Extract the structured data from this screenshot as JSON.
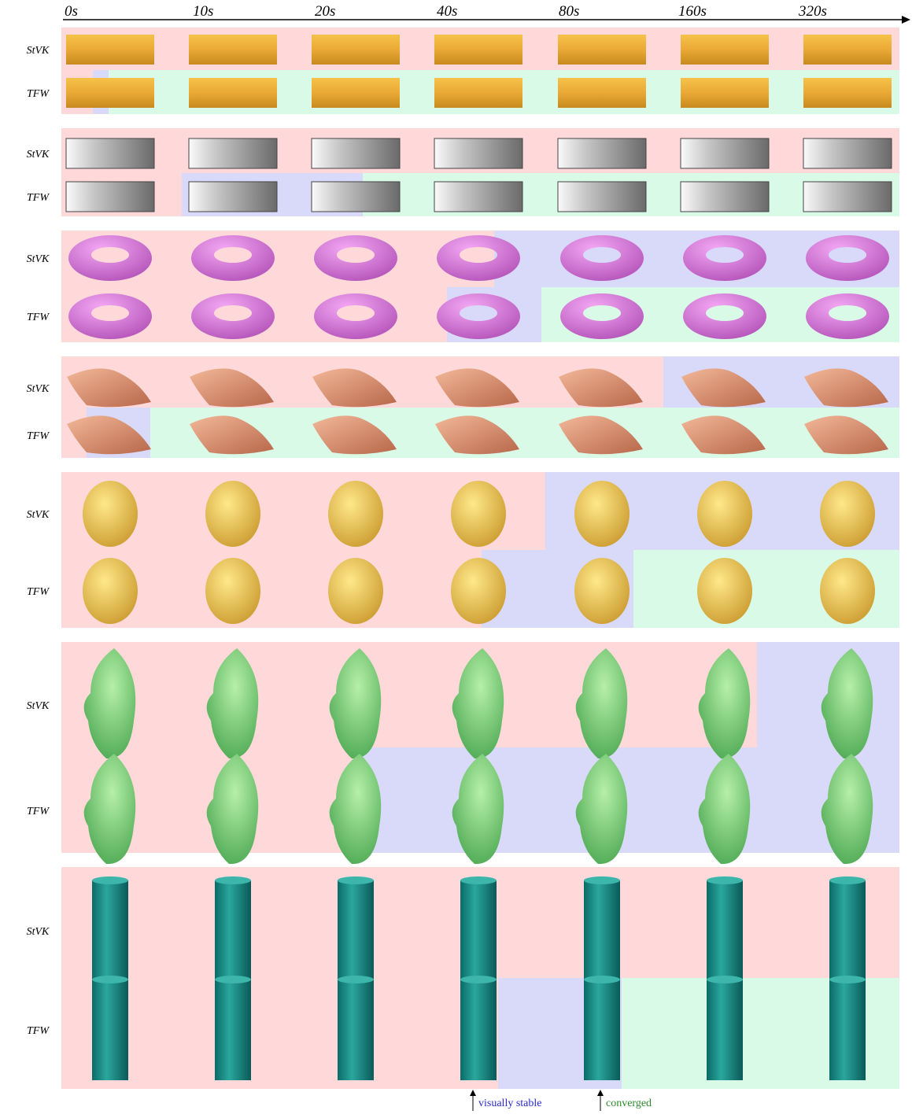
{
  "time_labels": [
    "0s",
    "10s",
    "20s",
    "40s",
    "80s",
    "160s",
    "320s"
  ],
  "groups": [
    {
      "rows": [
        "StVK",
        "TFW"
      ]
    },
    {
      "rows": [
        "StVK",
        "TFW"
      ]
    },
    {
      "rows": [
        "StVK",
        "TFW"
      ]
    },
    {
      "rows": [
        "StVK",
        "TFW"
      ]
    },
    {
      "rows": [
        "StVK",
        "TFW"
      ]
    },
    {
      "rows": [
        "StVK",
        "TFW"
      ]
    },
    {
      "rows": [
        "StVK",
        "TFW"
      ]
    }
  ],
  "annotations": {
    "visually_stable": "visually stable",
    "converged": "converged"
  }
}
